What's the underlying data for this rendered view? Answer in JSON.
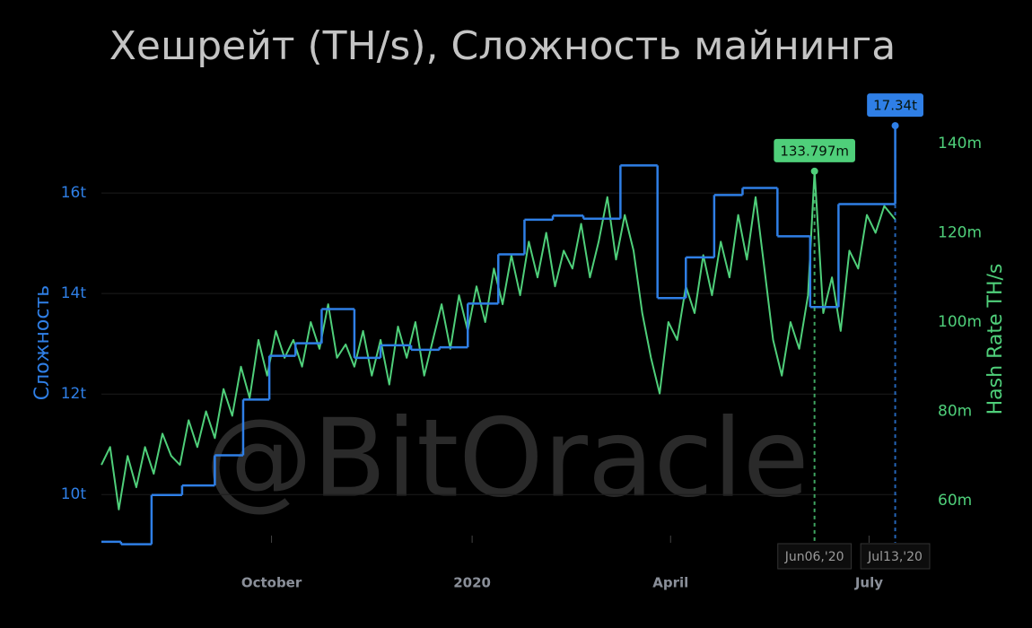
{
  "chart_data": {
    "type": "line",
    "title": "Хешрейт (TH/s), Сложность майнинга",
    "watermark": "@BitOracle",
    "ylabel": "Сложность",
    "y2label": "Hash Rate TH/s",
    "xlim": [
      "2019-07-15",
      "2020-07-14"
    ],
    "xticks": [
      {
        "value": "2019-10-01",
        "label": "October"
      },
      {
        "value": "2020-01-01",
        "label": "2020"
      },
      {
        "value": "2020-04-01",
        "label": "April"
      },
      {
        "value": "2020-07-01",
        "label": "July"
      }
    ],
    "ylim": [
      9.04,
      17.52
    ],
    "yticks": [
      {
        "value": 10,
        "label": "10t"
      },
      {
        "value": 12,
        "label": "12t"
      },
      {
        "value": 14,
        "label": "14t"
      },
      {
        "value": 16,
        "label": "16t"
      }
    ],
    "y2lim": [
      50.55,
      146.03
    ],
    "y2ticks": [
      {
        "value": 60,
        "label": "60m"
      },
      {
        "value": 80,
        "label": "80m"
      },
      {
        "value": 100,
        "label": "100m"
      },
      {
        "value": 120,
        "label": "120m"
      },
      {
        "value": 140,
        "label": "140m"
      }
    ],
    "grid": true,
    "series": [
      {
        "name": "Сложность",
        "color": "#2f7fe6",
        "step": true,
        "x": [
          "2019-07-15",
          "2019-07-24",
          "2019-08-07",
          "2019-08-21",
          "2019-09-05",
          "2019-09-18",
          "2019-09-30",
          "2019-10-12",
          "2019-10-24",
          "2019-11-08",
          "2019-11-20",
          "2019-12-04",
          "2019-12-17",
          "2019-12-30",
          "2020-01-13",
          "2020-01-25",
          "2020-02-07",
          "2020-02-21",
          "2020-03-09",
          "2020-03-26",
          "2020-04-08",
          "2020-04-21",
          "2020-05-04",
          "2020-05-20",
          "2020-06-04",
          "2020-06-17",
          "2020-07-13"
        ],
        "values": [
          9.06,
          9.01,
          9.99,
          10.18,
          10.78,
          11.89,
          12.76,
          13.01,
          13.69,
          12.72,
          12.97,
          12.88,
          12.93,
          13.8,
          14.78,
          15.47,
          15.55,
          15.49,
          16.55,
          13.91,
          14.72,
          15.96,
          16.1,
          15.14,
          13.73,
          15.78,
          17.34
        ]
      },
      {
        "name": "Hash Rate TH/s",
        "color": "#4fcf7a",
        "axis": "y2",
        "x": [
          "2019-07-15",
          "2019-07-19",
          "2019-07-23",
          "2019-07-27",
          "2019-07-31",
          "2019-08-04",
          "2019-08-08",
          "2019-08-12",
          "2019-08-16",
          "2019-08-20",
          "2019-08-24",
          "2019-08-28",
          "2019-09-01",
          "2019-09-05",
          "2019-09-09",
          "2019-09-13",
          "2019-09-17",
          "2019-09-21",
          "2019-09-25",
          "2019-09-29",
          "2019-10-03",
          "2019-10-07",
          "2019-10-11",
          "2019-10-15",
          "2019-10-19",
          "2019-10-23",
          "2019-10-27",
          "2019-10-31",
          "2019-11-04",
          "2019-11-08",
          "2019-11-12",
          "2019-11-16",
          "2019-11-20",
          "2019-11-24",
          "2019-11-28",
          "2019-12-02",
          "2019-12-06",
          "2019-12-10",
          "2019-12-14",
          "2019-12-18",
          "2019-12-22",
          "2019-12-26",
          "2019-12-30",
          "2020-01-03",
          "2020-01-07",
          "2020-01-11",
          "2020-01-15",
          "2020-01-19",
          "2020-01-23",
          "2020-01-27",
          "2020-01-31",
          "2020-02-04",
          "2020-02-08",
          "2020-02-12",
          "2020-02-16",
          "2020-02-20",
          "2020-02-24",
          "2020-02-28",
          "2020-03-03",
          "2020-03-07",
          "2020-03-11",
          "2020-03-15",
          "2020-03-19",
          "2020-03-23",
          "2020-03-27",
          "2020-03-31",
          "2020-04-04",
          "2020-04-08",
          "2020-04-12",
          "2020-04-16",
          "2020-04-20",
          "2020-04-24",
          "2020-04-28",
          "2020-05-02",
          "2020-05-06",
          "2020-05-10",
          "2020-05-14",
          "2020-05-18",
          "2020-05-22",
          "2020-05-26",
          "2020-05-30",
          "2020-06-03",
          "2020-06-06",
          "2020-06-10",
          "2020-06-14",
          "2020-06-18",
          "2020-06-22",
          "2020-06-26",
          "2020-06-30",
          "2020-07-04",
          "2020-07-08",
          "2020-07-13"
        ],
        "values": [
          68,
          72,
          58,
          70,
          63,
          72,
          66,
          75,
          70,
          68,
          78,
          72,
          80,
          74,
          85,
          79,
          90,
          83,
          96,
          88,
          98,
          92,
          96,
          90,
          100,
          94,
          104,
          92,
          95,
          90,
          98,
          88,
          96,
          86,
          99,
          92,
          100,
          88,
          96,
          104,
          94,
          106,
          98,
          108,
          100,
          112,
          104,
          115,
          106,
          118,
          110,
          120,
          108,
          116,
          112,
          122,
          110,
          118,
          128,
          114,
          124,
          116,
          102,
          92,
          84,
          100,
          96,
          108,
          102,
          115,
          106,
          118,
          110,
          124,
          114,
          128,
          112,
          96,
          88,
          100,
          94,
          106,
          133.797,
          102,
          110,
          98,
          116,
          112,
          124,
          120,
          126,
          123
        ]
      }
    ],
    "annotations": [
      {
        "series": "Hash Rate TH/s",
        "x": "2020-06-06",
        "label": "133.797m",
        "x_label": "Jun06,'20"
      },
      {
        "series": "Сложность",
        "x": "2020-07-13",
        "label": "17.34t",
        "x_label": "Jul13,'20"
      }
    ]
  }
}
